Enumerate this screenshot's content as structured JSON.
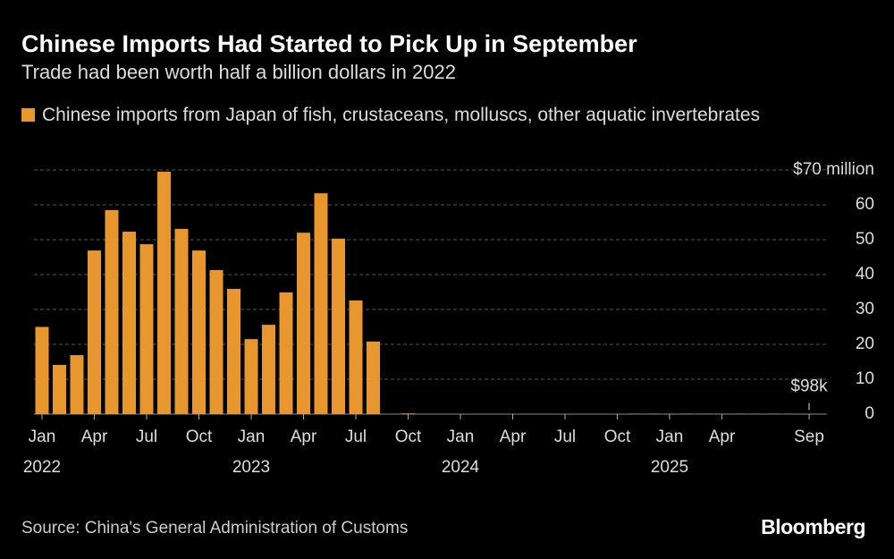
{
  "chart_data": {
    "type": "bar",
    "title": "Chinese Imports Had Started to Pick Up in September",
    "subtitle": "Trade had been worth half a billion dollars in 2022",
    "source": "Source: China's General Administration of Customs",
    "brand": "Bloomberg",
    "categories": [
      "Jan",
      null,
      null,
      "Apr",
      null,
      null,
      "Jul",
      null,
      null,
      "Oct",
      null,
      null,
      "Jan",
      null,
      null,
      "Apr",
      null,
      null,
      "Jul",
      null,
      null,
      "Oct",
      null,
      null,
      "Jan",
      null,
      null,
      "Apr",
      null,
      null,
      "Jul",
      null,
      null,
      "Oct",
      null,
      null,
      "Jan",
      null,
      null,
      "Apr",
      null,
      null,
      null,
      null,
      "Sep"
    ],
    "category_years": [
      "2022",
      null,
      null,
      null,
      null,
      null,
      null,
      null,
      null,
      null,
      null,
      null,
      "2023",
      null,
      null,
      null,
      null,
      null,
      null,
      null,
      null,
      null,
      null,
      null,
      "2024",
      null,
      null,
      null,
      null,
      null,
      null,
      null,
      null,
      null,
      null,
      null,
      "2025",
      null,
      null,
      null,
      null,
      null,
      null,
      null,
      null
    ],
    "series": [
      {
        "name": "Chinese imports from Japan of fish, crustaceans, molluscs, other aquatic invertebrates",
        "color": "#e8962e",
        "values": [
          25,
          14.1,
          16.9,
          46.9,
          58.5,
          52.3,
          48.7,
          69.5,
          53.1,
          46.9,
          41.3,
          35.9,
          21.5,
          25.6,
          34.9,
          52,
          63.3,
          50.3,
          32.6,
          20.8,
          0,
          0.2,
          0,
          0,
          0,
          0,
          0,
          0,
          0,
          0,
          0,
          0,
          0,
          0,
          0.1,
          0.1,
          0.1,
          0.1,
          0.1,
          0.1,
          0.1,
          0.1,
          0.1,
          0.1,
          0.098
        ],
        "value_labels": [
          null,
          null,
          null,
          null,
          null,
          null,
          null,
          null,
          null,
          null,
          null,
          null,
          null,
          null,
          null,
          null,
          null,
          null,
          null,
          null,
          null,
          null,
          null,
          null,
          null,
          null,
          null,
          null,
          null,
          null,
          null,
          null,
          null,
          null,
          null,
          null,
          null,
          null,
          null,
          null,
          null,
          null,
          null,
          null,
          "$98k"
        ]
      }
    ],
    "ylim": [
      0,
      70
    ],
    "yticks": [
      0,
      10,
      20,
      30,
      40,
      50,
      60,
      {
        "value": 70,
        "label": "$70 million"
      }
    ],
    "grid": true
  }
}
